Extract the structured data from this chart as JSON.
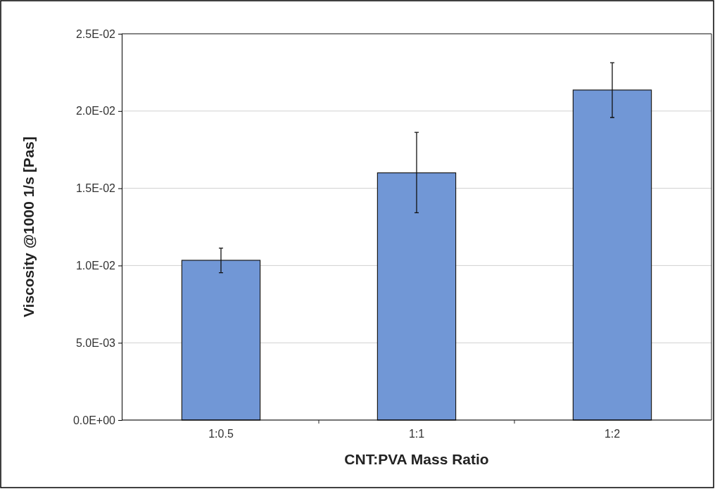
{
  "chart_data": {
    "type": "bar",
    "xlabel": "CNT:PVA Mass Ratio",
    "ylabel": "Viscosity @1000 1/s [Pas]",
    "categories": [
      "1:0.5",
      "1:1",
      "1:2"
    ],
    "values": [
      0.01034,
      0.016,
      0.02136
    ],
    "errors": [
      [
        0.00953,
        0.01113
      ],
      [
        0.01342,
        0.01862
      ],
      [
        0.01958,
        0.02313
      ]
    ],
    "color": "#7197d6",
    "ylim": [
      0,
      0.025
    ],
    "yticks": [
      {
        "value": 0,
        "label": "0.0E+00"
      },
      {
        "value": 0.005,
        "label": "5.0E-03"
      },
      {
        "value": 0.01,
        "label": "1.0E-02"
      },
      {
        "value": 0.015,
        "label": "1.5E-02"
      },
      {
        "value": 0.02,
        "label": "2.0E-02"
      },
      {
        "value": 0.025,
        "label": "2.5E-02"
      }
    ],
    "grid": "y"
  }
}
